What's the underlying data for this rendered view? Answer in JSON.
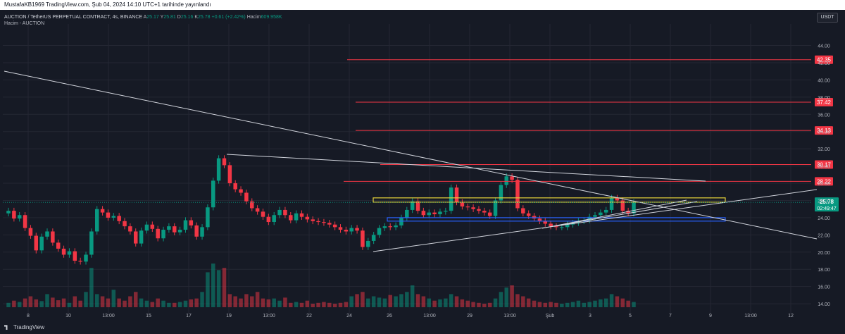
{
  "header": {
    "attribution": "MustafaKB1969 TradingView.com, Şub 04, 2024 14:10 UTC+1 tarihinde yayınlandı"
  },
  "legend": {
    "symbol": "AUCTION / TetherUS PERPETUAL CONTRACT, 4s, BINANCE",
    "open_label": "A",
    "open": "25.17",
    "high_label": "Y",
    "high": "25.81",
    "low_label": "D",
    "low": "25.16",
    "close_label": "K",
    "close": "25.78",
    "change": "+0.61 (+2.42%)",
    "volume_label": "Hacim",
    "volume": "609.958K",
    "volume_title": "Hacim - AUCTION"
  },
  "currency": "USDT",
  "colors": {
    "up": "#089981",
    "down": "#f23645",
    "bg": "#161a25",
    "grid": "#242733",
    "hline": "#f23645",
    "zone_yellow": "#e6d33a",
    "zone_blue": "#2962ff"
  },
  "chart_data": {
    "type": "candlestick",
    "price_axis_ticks": [
      44,
      42,
      40,
      38,
      36,
      34,
      32,
      30,
      28,
      26,
      24,
      22,
      20,
      18,
      16,
      14
    ],
    "price_axis_labels": [
      "44.00",
      "42.00",
      "40.00",
      "38.00",
      "36.00",
      "34.00",
      "32.00",
      "30.00",
      "28.00",
      "26.00",
      "24.00",
      "22.00",
      "20.00",
      "18.00",
      "16.00",
      "14.00"
    ],
    "time_axis_labels": [
      "8",
      "10",
      "13:00",
      "15",
      "17",
      "19",
      "13:00",
      "22",
      "24",
      "26",
      "13:00",
      "29",
      "13:00",
      "Şub",
      "3",
      "5",
      "7",
      "9",
      "13:00",
      "12"
    ],
    "ylim": [
      13.6,
      46.5
    ],
    "horizontal_levels": [
      {
        "price": 42.35,
        "label": "42.35"
      },
      {
        "price": 37.42,
        "label": "37.42"
      },
      {
        "price": 34.13,
        "label": "34.13"
      },
      {
        "price": 30.17,
        "label": "30.17"
      },
      {
        "price": 28.22,
        "label": "28.22"
      }
    ],
    "last_price": "25.78",
    "countdown": "02:49:47",
    "zones": [
      {
        "color": "yellow",
        "low": 25.8,
        "high": 26.3
      },
      {
        "color": "blue",
        "low": 23.6,
        "high": 24.0
      }
    ],
    "closes": [
      24.8,
      23.9,
      24.3,
      22.8,
      21.9,
      20.2,
      21.8,
      22.4,
      21.1,
      20.4,
      19.7,
      20.1,
      19.0,
      18.9,
      19.7,
      22.4,
      25.0,
      24.6,
      24.0,
      24.2,
      23.6,
      23.0,
      22.4,
      21.0,
      22.5,
      23.2,
      22.7,
      21.6,
      22.6,
      23.0,
      22.3,
      22.6,
      23.7,
      23.1,
      21.8,
      22.9,
      25.2,
      28.3,
      30.9,
      30.1,
      28.0,
      27.3,
      26.9,
      25.9,
      25.1,
      24.7,
      24.1,
      23.5,
      24.3,
      24.9,
      24.3,
      23.7,
      24.5,
      24.1,
      23.8,
      23.6,
      23.5,
      23.4,
      23.2,
      22.9,
      22.6,
      22.4,
      22.8,
      22.5,
      20.6,
      21.3,
      22.0,
      22.8,
      23.0,
      22.9,
      23.1,
      24.0,
      24.9,
      25.9,
      24.8,
      24.3,
      24.6,
      24.4,
      24.7,
      24.8,
      27.5,
      25.8,
      25.3,
      25.2,
      25.0,
      24.8,
      24.6,
      24.2,
      26.0,
      27.8,
      28.8,
      28.4,
      25.1,
      24.5,
      24.2,
      23.9,
      23.6,
      23.3,
      23.0,
      22.9,
      22.9,
      23.2,
      23.4,
      23.6,
      23.7,
      24.1,
      24.3,
      24.6,
      24.9,
      26.3,
      26.0,
      24.8,
      24.5,
      25.78
    ],
    "volume_relative": [
      0.1,
      0.15,
      0.12,
      0.2,
      0.25,
      0.18,
      0.14,
      0.3,
      0.22,
      0.16,
      0.2,
      0.1,
      0.25,
      0.15,
      0.35,
      0.9,
      0.3,
      0.25,
      0.2,
      0.4,
      0.2,
      0.15,
      0.25,
      0.35,
      0.2,
      0.15,
      0.12,
      0.2,
      0.15,
      0.1,
      0.1,
      0.12,
      0.15,
      0.18,
      0.2,
      0.35,
      0.8,
      1.0,
      0.85,
      0.9,
      0.3,
      0.25,
      0.2,
      0.3,
      0.25,
      0.35,
      0.2,
      0.18,
      0.2,
      0.15,
      0.22,
      0.1,
      0.12,
      0.1,
      0.15,
      0.08,
      0.1,
      0.12,
      0.1,
      0.08,
      0.1,
      0.12,
      0.25,
      0.3,
      0.35,
      0.2,
      0.25,
      0.22,
      0.2,
      0.28,
      0.25,
      0.3,
      0.35,
      0.5,
      0.3,
      0.25,
      0.2,
      0.15,
      0.18,
      0.2,
      0.3,
      0.25,
      0.18,
      0.15,
      0.12,
      0.1,
      0.08,
      0.1,
      0.2,
      0.35,
      0.45,
      0.5,
      0.3,
      0.25,
      0.2,
      0.15,
      0.12,
      0.1,
      0.12,
      0.1,
      0.08,
      0.1,
      0.12,
      0.15,
      0.1,
      0.12,
      0.15,
      0.18,
      0.2,
      0.3,
      0.25,
      0.2,
      0.15,
      0.12
    ]
  },
  "footer": {
    "brand": "TradingView"
  }
}
